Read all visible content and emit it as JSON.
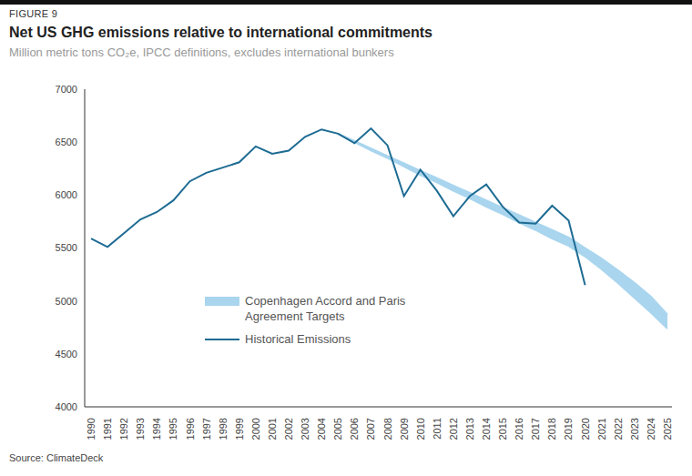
{
  "chart_data": {
    "type": "line",
    "figure_label": "FIGURE 9",
    "title": "Net US GHG emissions relative to international commitments",
    "subtitle": "Million metric tons CO₂e, IPCC definitions, excludes international bunkers",
    "source": "Source: ClimateDeck",
    "categories": [
      "1990",
      "1991",
      "1992",
      "1993",
      "1994",
      "1995",
      "1996",
      "1997",
      "1998",
      "1999",
      "2000",
      "2001",
      "2002",
      "2003",
      "2004",
      "2005",
      "2006",
      "2007",
      "2008",
      "2009",
      "2010",
      "2011",
      "2012",
      "2013",
      "2014",
      "2015",
      "2016",
      "2017",
      "2018",
      "2019",
      "2020",
      "2021",
      "2022",
      "2023",
      "2024",
      "2025"
    ],
    "series": [
      {
        "name": "Copenhagen Accord and Paris Agreement Targets",
        "type": "area",
        "color": "#a9d5ee",
        "values": [
          null,
          null,
          null,
          null,
          null,
          null,
          null,
          null,
          null,
          null,
          null,
          null,
          null,
          null,
          null,
          [
            6580,
            6580
          ],
          [
            6500,
            6510
          ],
          [
            6420,
            6440
          ],
          [
            6350,
            6370
          ],
          [
            6270,
            6300
          ],
          [
            6190,
            6230
          ],
          [
            6120,
            6160
          ],
          [
            6040,
            6090
          ],
          [
            5970,
            6020
          ],
          [
            5890,
            5950
          ],
          [
            5820,
            5880
          ],
          [
            5740,
            5810
          ],
          [
            5670,
            5740
          ],
          [
            5590,
            5670
          ],
          [
            5520,
            5600
          ],
          [
            5420,
            5500
          ],
          [
            5300,
            5400
          ],
          [
            5170,
            5290
          ],
          [
            5030,
            5170
          ],
          [
            4890,
            5040
          ],
          [
            4740,
            4870
          ]
        ]
      },
      {
        "name": "Historical Emissions",
        "type": "line",
        "color": "#1d6b93",
        "values": [
          5590,
          5510,
          5640,
          5770,
          5840,
          5950,
          6130,
          6210,
          6260,
          6310,
          6460,
          6390,
          6420,
          6550,
          6620,
          6580,
          6490,
          6630,
          6470,
          5990,
          6240,
          6040,
          5800,
          5990,
          6100,
          5890,
          5740,
          5730,
          5900,
          5760,
          5150,
          null,
          null,
          null,
          null,
          null
        ]
      }
    ],
    "ylim": [
      4000,
      7000
    ],
    "yticks": [
      4000,
      4500,
      5000,
      5500,
      6000,
      6500,
      7000
    ],
    "grid": false,
    "legend": "center left"
  }
}
